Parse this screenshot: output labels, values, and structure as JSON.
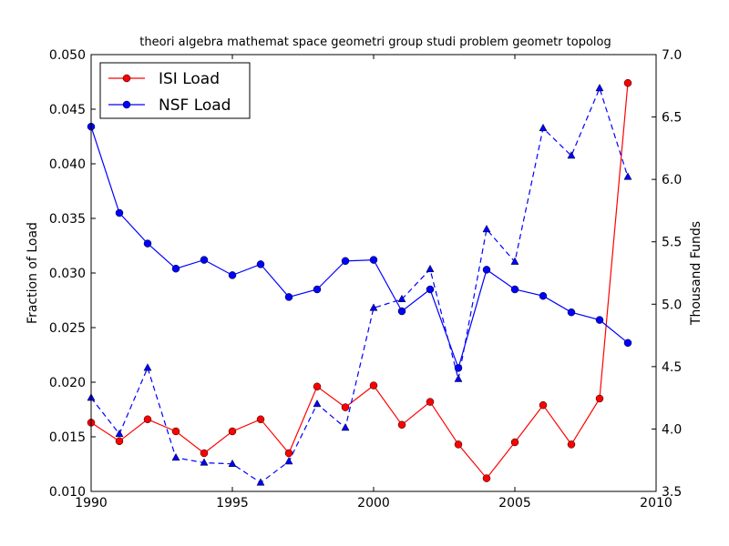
{
  "chart_data": {
    "type": "line",
    "title": "theori algebra mathemat space geometri group studi problem geometr topolog",
    "xlabel": "",
    "ylabel": "Fraction of Load",
    "y2label": "Thousand Funds",
    "xlim": [
      1990,
      2010
    ],
    "ylim": [
      0.01,
      0.05
    ],
    "y2lim": [
      3.5,
      7.0
    ],
    "xticks": [
      "1990",
      "1995",
      "2000",
      "2005",
      "2010"
    ],
    "yticks": [
      "0.010",
      "0.015",
      "0.020",
      "0.025",
      "0.030",
      "0.035",
      "0.040",
      "0.045",
      "0.050"
    ],
    "y2ticks": [
      "3.5",
      "4.0",
      "4.5",
      "5.0",
      "5.5",
      "6.0",
      "6.5",
      "7.0"
    ],
    "grid": false,
    "legend_position": "top-left",
    "x": [
      1990,
      1991,
      1992,
      1993,
      1994,
      1995,
      1996,
      1997,
      1998,
      1999,
      2000,
      2001,
      2002,
      2003,
      2004,
      2005,
      2006,
      2007,
      2008,
      2009
    ],
    "series": [
      {
        "name": "ISI Load",
        "axis": "left",
        "color": "#ff0000",
        "marker": "circle",
        "style": "solid",
        "values": [
          0.0163,
          0.0146,
          0.0166,
          0.0155,
          0.0135,
          0.0155,
          0.0166,
          0.0135,
          0.0196,
          0.0177,
          0.0197,
          0.0161,
          0.0182,
          0.0143,
          0.0112,
          0.0145,
          0.0179,
          0.0143,
          0.0185,
          0.0474
        ]
      },
      {
        "name": "NSF Load",
        "axis": "left",
        "color": "#0000ff",
        "marker": "circle",
        "style": "solid",
        "values": [
          0.0434,
          0.0355,
          0.0327,
          0.0304,
          0.0312,
          0.0298,
          0.0308,
          0.0278,
          0.0285,
          0.0311,
          0.0312,
          0.0265,
          0.0285,
          0.0213,
          0.0303,
          0.0285,
          0.0279,
          0.0264,
          0.0257,
          0.0236
        ]
      },
      {
        "axis": "right",
        "color": "#0000ff",
        "marker": "triangle",
        "style": "dashed",
        "values": [
          4.25,
          3.96,
          4.49,
          3.77,
          3.73,
          3.72,
          3.57,
          3.74,
          4.2,
          4.01,
          4.97,
          5.04,
          5.28,
          4.4,
          5.6,
          5.34,
          6.41,
          6.19,
          6.73,
          6.02
        ]
      }
    ]
  }
}
